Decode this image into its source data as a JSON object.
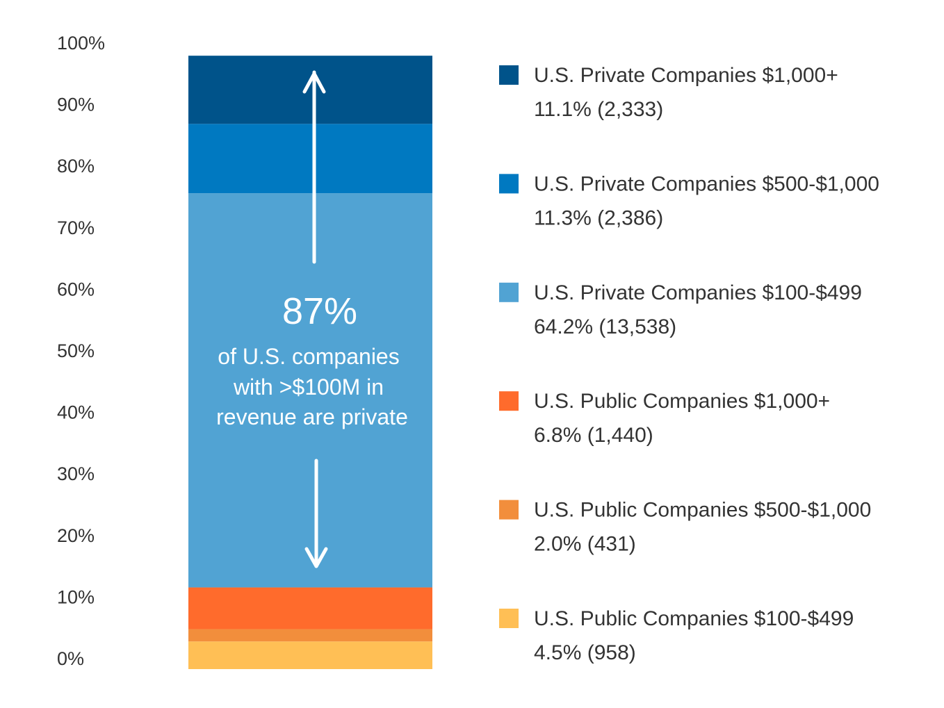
{
  "chart_data": {
    "type": "bar",
    "stacked": true,
    "orientation": "vertical",
    "y_unit": "%",
    "ylim": [
      0,
      100
    ],
    "yticks": [
      "0%",
      "10%",
      "20%",
      "30%",
      "40%",
      "50%",
      "60%",
      "70%",
      "80%",
      "90%",
      "100%"
    ],
    "series": [
      {
        "name": "U.S. Public Companies $100-$499",
        "detail": "4.5% (958)",
        "value": 4.5,
        "count": 958,
        "color": "#FFBF55"
      },
      {
        "name": "U.S. Public Companies $500-$1,000",
        "detail": "2.0% (431)",
        "value": 2.0,
        "count": 431,
        "color": "#F28E3C"
      },
      {
        "name": "U.S. Public Companies $1,000+",
        "detail": "6.8% (1,440)",
        "value": 6.8,
        "count": 1440,
        "color": "#FF6B2C"
      },
      {
        "name": "U.S. Private Companies $100-$499",
        "detail": "64.2% (13,538)",
        "value": 64.2,
        "count": 13538,
        "color": "#51A3D3"
      },
      {
        "name": "U.S. Private Companies $500-$1,000",
        "detail": "11.3% (2,386)",
        "value": 11.3,
        "count": 2386,
        "color": "#0079C1"
      },
      {
        "name": "U.S. Private Companies $1,000+",
        "detail": "11.1% (2,333)",
        "value": 11.1,
        "count": 2333,
        "color": "#00538A"
      }
    ],
    "legend_order": [
      5,
      4,
      3,
      2,
      1,
      0
    ],
    "legend_position": "right",
    "grid": false,
    "annotation": {
      "value": "87%",
      "lines": [
        "of U.S. companies",
        "with >$100M in",
        "revenue are private"
      ]
    }
  }
}
